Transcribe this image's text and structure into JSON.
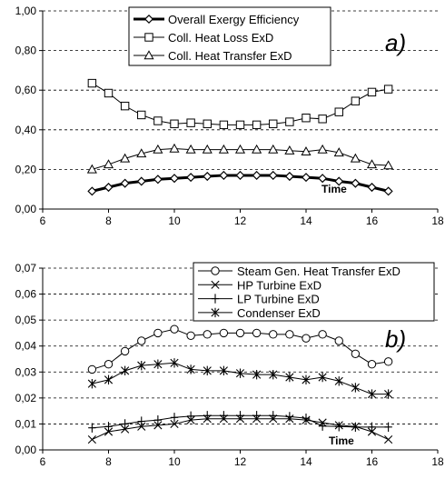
{
  "chart_data": [
    {
      "type": "line",
      "panel_label": "a)",
      "xlabel": "Time",
      "ylabel": "",
      "xlim": [
        6,
        18
      ],
      "ylim": [
        0,
        1
      ],
      "x_ticks": [
        "6",
        "8",
        "10",
        "12",
        "14",
        "16",
        "18"
      ],
      "y_ticks": [
        "0,00",
        "0,20",
        "0,40",
        "0,60",
        "0,80",
        "1,00"
      ],
      "grid": "horizontal dashed",
      "legend_position": "top-center",
      "x": [
        7.5,
        8.0,
        8.5,
        9.0,
        9.5,
        10.0,
        10.5,
        11.0,
        11.5,
        12.0,
        12.5,
        13.0,
        13.5,
        14.0,
        14.5,
        15.0,
        15.5,
        16.0,
        16.5
      ],
      "series": [
        {
          "name": "Overall Exergy Efficiency",
          "marker": "diamond",
          "line": "thick",
          "values": [
            0.09,
            0.11,
            0.13,
            0.14,
            0.15,
            0.155,
            0.16,
            0.165,
            0.17,
            0.17,
            0.17,
            0.17,
            0.165,
            0.16,
            0.155,
            0.14,
            0.13,
            0.11,
            0.09
          ]
        },
        {
          "name": "Coll. Heat Loss ExD",
          "marker": "square",
          "line": "thin",
          "values": [
            0.635,
            0.585,
            0.52,
            0.475,
            0.445,
            0.43,
            0.435,
            0.43,
            0.425,
            0.425,
            0.425,
            0.43,
            0.44,
            0.46,
            0.455,
            0.49,
            0.545,
            0.59,
            0.605
          ]
        },
        {
          "name": "Coll. Heat Transfer ExD",
          "marker": "triangle",
          "line": "thin",
          "values": [
            0.2,
            0.225,
            0.255,
            0.28,
            0.3,
            0.305,
            0.3,
            0.3,
            0.3,
            0.3,
            0.3,
            0.3,
            0.295,
            0.29,
            0.3,
            0.285,
            0.255,
            0.225,
            0.22
          ]
        }
      ]
    },
    {
      "type": "line",
      "panel_label": "b)",
      "xlabel": "Time",
      "ylabel": "",
      "xlim": [
        6,
        18
      ],
      "ylim": [
        0,
        0.07
      ],
      "x_ticks": [
        "6",
        "8",
        "10",
        "12",
        "14",
        "16",
        "18"
      ],
      "y_ticks": [
        "0,00",
        "0,01",
        "0,02",
        "0,03",
        "0,04",
        "0,05",
        "0,06",
        "0,07"
      ],
      "grid": "horizontal dashed",
      "legend_position": "top-right",
      "x": [
        7.5,
        8.0,
        8.5,
        9.0,
        9.5,
        10.0,
        10.5,
        11.0,
        11.5,
        12.0,
        12.5,
        13.0,
        13.5,
        14.0,
        14.5,
        15.0,
        15.5,
        16.0,
        16.5
      ],
      "series": [
        {
          "name": "Steam Gen. Heat Transfer ExD",
          "marker": "circle",
          "values": [
            0.031,
            0.033,
            0.038,
            0.042,
            0.045,
            0.0465,
            0.044,
            0.0445,
            0.045,
            0.045,
            0.045,
            0.0445,
            0.0445,
            0.043,
            0.0445,
            0.042,
            0.037,
            0.033,
            0.034
          ]
        },
        {
          "name": "HP Turbine ExD",
          "marker": "x",
          "values": [
            0.004,
            0.007,
            0.008,
            0.009,
            0.0095,
            0.01,
            0.0115,
            0.012,
            0.012,
            0.012,
            0.012,
            0.012,
            0.012,
            0.0115,
            0.0105,
            0.0095,
            0.009,
            0.007,
            0.004
          ]
        },
        {
          "name": "LP Turbine ExD",
          "marker": "plus",
          "values": [
            0.0085,
            0.009,
            0.01,
            0.011,
            0.0115,
            0.0125,
            0.013,
            0.0132,
            0.0132,
            0.0132,
            0.0132,
            0.0132,
            0.0128,
            0.0122,
            0.0092,
            0.009,
            0.0088,
            0.0088,
            0.0088
          ]
        },
        {
          "name": "Condenser ExD",
          "marker": "asterisk",
          "values": [
            0.0255,
            0.027,
            0.0305,
            0.0325,
            0.033,
            0.0335,
            0.031,
            0.0305,
            0.0305,
            0.0295,
            0.029,
            0.029,
            0.028,
            0.027,
            0.028,
            0.0265,
            0.024,
            0.0215,
            0.0215
          ]
        }
      ]
    }
  ]
}
